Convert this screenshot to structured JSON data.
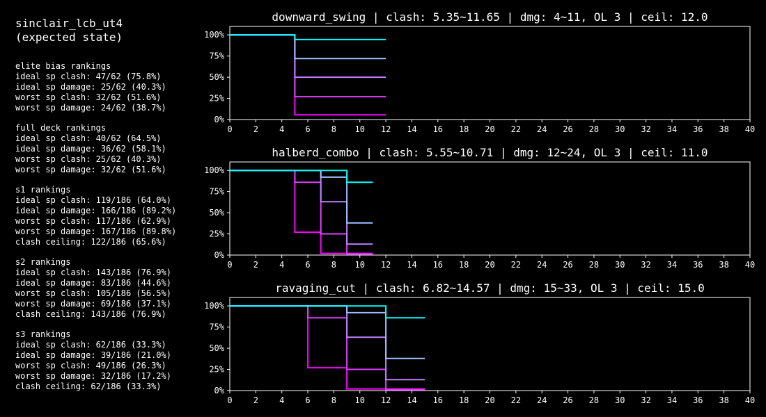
{
  "sheet": {
    "title_lines": [
      "sinclair_lcb_ut4",
      "(expected state)"
    ],
    "groups": [
      {
        "heading": "elite bias rankings",
        "lines": [
          "ideal sp clash: 47/62 (75.8%)",
          "ideal sp damage: 25/62 (40.3%)",
          "worst sp clash: 32/62 (51.6%)",
          "worst sp damage: 24/62 (38.7%)"
        ]
      },
      {
        "heading": "full deck rankings",
        "lines": [
          "ideal sp clash: 40/62 (64.5%)",
          "ideal sp damage: 36/62 (58.1%)",
          "worst sp clash: 25/62 (40.3%)",
          "worst sp damage: 32/62 (51.6%)"
        ]
      },
      {
        "heading": "s1 rankings",
        "lines": [
          "ideal sp clash: 119/186 (64.0%)",
          "ideal sp damage: 166/186 (89.2%)",
          "worst sp clash: 117/186 (62.9%)",
          "worst sp damage: 167/186 (89.8%)",
          "clash ceiling: 122/186 (65.6%)"
        ]
      },
      {
        "heading": "s2 rankings",
        "lines": [
          "ideal sp clash: 143/186 (76.9%)",
          "ideal sp damage: 83/186 (44.6%)",
          "worst sp clash: 105/186 (56.5%)",
          "worst sp damage: 69/186 (37.1%)",
          "clash ceiling: 143/186 (76.9%)"
        ]
      },
      {
        "heading": "s3 rankings",
        "lines": [
          "ideal sp clash: 62/186 (33.3%)",
          "ideal sp damage: 39/186 (21.0%)",
          "worst sp clash: 49/186 (26.3%)",
          "worst sp damage: 32/186 (17.2%)",
          "clash ceiling: 62/186 (33.3%)"
        ]
      }
    ]
  },
  "chart_data": [
    {
      "type": "line",
      "step": true,
      "title": "downward_swing | clash: 5.35~11.65 | dmg: 4~11, OL 3 | ceil: 12.0",
      "xlim": [
        0,
        40
      ],
      "ylim": [
        0,
        1.1
      ],
      "xticks": [
        0,
        2,
        4,
        6,
        8,
        10,
        12,
        14,
        16,
        18,
        20,
        22,
        24,
        26,
        28,
        30,
        32,
        34,
        36,
        38,
        40
      ],
      "yticks": [
        0,
        0.25,
        0.5,
        0.75,
        1.0
      ],
      "ytick_labels": [
        "0%",
        "25%",
        "50%",
        "75%",
        "100%"
      ],
      "grid": false,
      "series": [
        {
          "color": "#ff00ff",
          "points": [
            [
              0,
              1.0
            ],
            [
              5,
              1.0
            ],
            [
              5,
              0.055
            ],
            [
              12,
              0.055
            ]
          ]
        },
        {
          "color": "#df40ff",
          "points": [
            [
              0,
              1.0
            ],
            [
              5,
              1.0
            ],
            [
              5,
              0.27
            ],
            [
              12,
              0.27
            ]
          ]
        },
        {
          "color": "#bf80ff",
          "points": [
            [
              0,
              1.0
            ],
            [
              5,
              1.0
            ],
            [
              5,
              0.5
            ],
            [
              12,
              0.5
            ]
          ]
        },
        {
          "color": "#9fc0ff",
          "points": [
            [
              0,
              1.0
            ],
            [
              5,
              1.0
            ],
            [
              5,
              0.72
            ],
            [
              12,
              0.72
            ]
          ]
        },
        {
          "color": "#00ffff",
          "points": [
            [
              0,
              1.0
            ],
            [
              5,
              1.0
            ],
            [
              5,
              0.945
            ],
            [
              12,
              0.945
            ]
          ]
        }
      ]
    },
    {
      "type": "line",
      "step": true,
      "title": "halberd_combo | clash: 5.55~10.71 | dmg: 12~24, OL 3 | ceil: 11.0",
      "xlim": [
        0,
        40
      ],
      "ylim": [
        0,
        1.1
      ],
      "xticks": [
        0,
        2,
        4,
        6,
        8,
        10,
        12,
        14,
        16,
        18,
        20,
        22,
        24,
        26,
        28,
        30,
        32,
        34,
        36,
        38,
        40
      ],
      "yticks": [
        0,
        0.25,
        0.5,
        0.75,
        1.0
      ],
      "ytick_labels": [
        "0%",
        "25%",
        "50%",
        "75%",
        "100%"
      ],
      "grid": false,
      "series": [
        {
          "color": "#ff00ff",
          "points": [
            [
              0,
              1.0
            ],
            [
              5,
              1.0
            ],
            [
              5,
              0.27
            ],
            [
              7,
              0.27
            ],
            [
              7,
              0.02
            ],
            [
              11,
              0.02
            ]
          ]
        },
        {
          "color": "#df40ff",
          "points": [
            [
              0,
              1.0
            ],
            [
              5,
              1.0
            ],
            [
              5,
              0.86
            ],
            [
              7,
              0.86
            ],
            [
              7,
              0.25
            ],
            [
              9,
              0.25
            ],
            [
              9,
              0.01
            ],
            [
              11,
              0.01
            ]
          ]
        },
        {
          "color": "#bf80ff",
          "points": [
            [
              0,
              1.0
            ],
            [
              7,
              1.0
            ],
            [
              7,
              0.63
            ],
            [
              9,
              0.63
            ],
            [
              9,
              0.13
            ],
            [
              11,
              0.13
            ]
          ]
        },
        {
          "color": "#9fc0ff",
          "points": [
            [
              0,
              1.0
            ],
            [
              7,
              1.0
            ],
            [
              7,
              0.92
            ],
            [
              9,
              0.92
            ],
            [
              9,
              0.38
            ],
            [
              11,
              0.38
            ]
          ]
        },
        {
          "color": "#00ffff",
          "points": [
            [
              0,
              1.0
            ],
            [
              9,
              1.0
            ],
            [
              9,
              0.86
            ],
            [
              11,
              0.86
            ]
          ]
        }
      ]
    },
    {
      "type": "line",
      "step": true,
      "title": "ravaging_cut | clash: 6.82~14.57 | dmg: 15~33, OL 3 | ceil: 15.0",
      "xlim": [
        0,
        40
      ],
      "ylim": [
        0,
        1.1
      ],
      "xticks": [
        0,
        2,
        4,
        6,
        8,
        10,
        12,
        14,
        16,
        18,
        20,
        22,
        24,
        26,
        28,
        30,
        32,
        34,
        36,
        38,
        40
      ],
      "yticks": [
        0,
        0.25,
        0.5,
        0.75,
        1.0
      ],
      "ytick_labels": [
        "0%",
        "25%",
        "50%",
        "75%",
        "100%"
      ],
      "grid": false,
      "series": [
        {
          "color": "#ff00ff",
          "points": [
            [
              0,
              1.0
            ],
            [
              6,
              1.0
            ],
            [
              6,
              0.27
            ],
            [
              9,
              0.27
            ],
            [
              9,
              0.02
            ],
            [
              15,
              0.02
            ]
          ]
        },
        {
          "color": "#df40ff",
          "points": [
            [
              0,
              1.0
            ],
            [
              6,
              1.0
            ],
            [
              6,
              0.86
            ],
            [
              9,
              0.86
            ],
            [
              9,
              0.25
            ],
            [
              12,
              0.25
            ],
            [
              12,
              0.01
            ],
            [
              15,
              0.01
            ]
          ]
        },
        {
          "color": "#bf80ff",
          "points": [
            [
              0,
              1.0
            ],
            [
              9,
              1.0
            ],
            [
              9,
              0.63
            ],
            [
              12,
              0.63
            ],
            [
              12,
              0.13
            ],
            [
              15,
              0.13
            ]
          ]
        },
        {
          "color": "#9fc0ff",
          "points": [
            [
              0,
              1.0
            ],
            [
              9,
              1.0
            ],
            [
              9,
              0.92
            ],
            [
              12,
              0.92
            ],
            [
              12,
              0.38
            ],
            [
              15,
              0.38
            ]
          ]
        },
        {
          "color": "#00ffff",
          "points": [
            [
              0,
              1.0
            ],
            [
              12,
              1.0
            ],
            [
              12,
              0.86
            ],
            [
              15,
              0.86
            ]
          ]
        }
      ]
    }
  ]
}
